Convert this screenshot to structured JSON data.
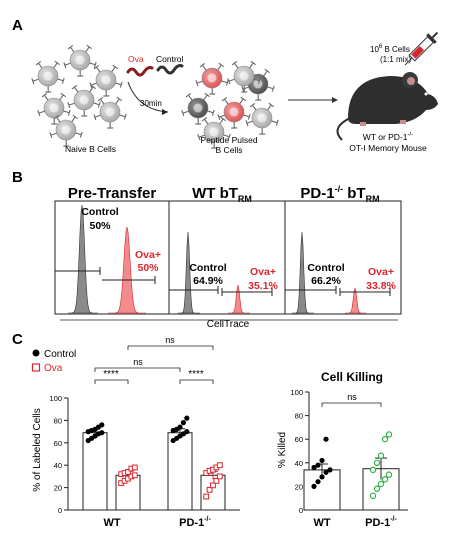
{
  "panels": {
    "A": {
      "letter": "A",
      "naive_label": "Naive B Cells",
      "ova_label": "Ova",
      "control_label": "Control",
      "time_label": "30min",
      "pulsed_label_1": "Peptide Pulsed",
      "pulsed_label_2": "B Cells",
      "inject_label_1": "10",
      "inject_label_exp": "6",
      "inject_label_2": " B Cells",
      "inject_label_3": "(1:1 mix)",
      "mouse_label_1": "WT or PD-1",
      "mouse_label_exp": "-/-",
      "mouse_label_2": "OT-I Memory Mouse"
    },
    "B": {
      "letter": "B",
      "xaxis_label": "CellTrace",
      "plots": [
        {
          "title": "Pre-Transfer",
          "title_sub": "",
          "control_label": "Control",
          "control_pct": "50%",
          "ova_label": "Ova+",
          "ova_pct": "50%"
        },
        {
          "title": "WT bT",
          "title_sub": "RM",
          "control_label": "Control",
          "control_pct": "64.9%",
          "ova_label": "Ova+",
          "ova_pct": "35.1%"
        },
        {
          "title": "PD-1",
          "title_exp": "-/-",
          "title_mid": " bT",
          "title_sub": "RM",
          "control_label": "Control",
          "control_pct": "66.2%",
          "ova_label": "Ova+",
          "ova_pct": "33.8%"
        }
      ]
    },
    "C": {
      "letter": "C",
      "legend_control": "Control",
      "legend_ova": "Ova",
      "left_ylabel": "% of Labeled Cells",
      "left_x_wt": "WT",
      "left_x_pd1": "PD-1",
      "left_x_pd1_exp": "-/-",
      "sig_wt": "****",
      "sig_pd1": "****",
      "ns_1": "ns",
      "ns_2": "ns",
      "right_title": "Cell Killing",
      "right_ylabel": "% Killed",
      "right_x_wt": "WT",
      "right_x_pd1": "PD-1",
      "right_x_pd1_exp": "-/-",
      "right_ns": "ns",
      "yticks": [
        "0",
        "20",
        "40",
        "60",
        "80",
        "100"
      ]
    }
  },
  "colors": {
    "ova_red": "#d9262e",
    "control_gray": "#777777",
    "green": "#2db34a"
  },
  "chart_data": [
    {
      "type": "bar",
      "categories": [
        "WT",
        "PD-1-/-"
      ],
      "series": [
        {
          "name": "Control",
          "values": [
            69,
            69
          ],
          "points": [
            [
              62,
              64,
              66,
              68,
              69,
              70,
              71,
              72,
              74,
              76
            ],
            [
              62,
              64,
              66,
              68,
              70,
              71,
              72,
              74,
              78,
              82
            ]
          ]
        },
        {
          "name": "Ova",
          "values": [
            31,
            31
          ],
          "points": [
            [
              24,
              26,
              28,
              30,
              31,
              32,
              33,
              34,
              37,
              38
            ],
            [
              12,
              18,
              22,
              26,
              30,
              33,
              35,
              36,
              38,
              40
            ]
          ]
        }
      ],
      "ylabel": "% of Labeled Cells",
      "ylim": [
        0,
        100
      ]
    },
    {
      "type": "bar",
      "title": "Cell Killing",
      "categories": [
        "WT",
        "PD-1-/-"
      ],
      "values": [
        34,
        35
      ],
      "points": [
        [
          20,
          24,
          28,
          32,
          34,
          36,
          38,
          42,
          60
        ],
        [
          12,
          18,
          22,
          26,
          30,
          34,
          40,
          46,
          60,
          64
        ]
      ],
      "ylabel": "% Killed",
      "ylim": [
        0,
        100
      ]
    }
  ]
}
